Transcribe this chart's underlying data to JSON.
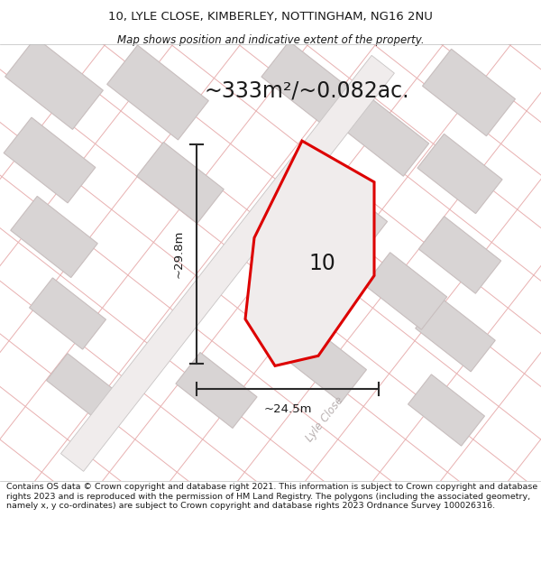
{
  "title_line1": "10, LYLE CLOSE, KIMBERLEY, NOTTINGHAM, NG16 2NU",
  "title_line2": "Map shows position and indicative extent of the property.",
  "area_text": "~333m²/~0.082ac.",
  "label_number": "10",
  "dim_vertical": "~29.8m",
  "dim_horizontal": "~24.5m",
  "street_label": "Lyle Close",
  "footer_text": "Contains OS data © Crown copyright and database right 2021. This information is subject to Crown copyright and database rights 2023 and is reproduced with the permission of HM Land Registry. The polygons (including the associated geometry, namely x, y co-ordinates) are subject to Crown copyright and database rights 2023 Ordnance Survey 100026316.",
  "map_bg": "#ece9e9",
  "plot_fill": "#f0ecec",
  "plot_outline": "#dd0000",
  "building_fill": "#d8d4d4",
  "building_edge": "#c8bebe",
  "road_outline_color": "#d0c8c8",
  "road_fill": "#eae6e6",
  "pink_line_color": "#e8b0b0",
  "gray_line_color": "#c8c4c4",
  "dim_line_color": "#2a2a2a",
  "text_color": "#1a1a1a",
  "street_text_color": "#b8b0b0",
  "footer_bg": "#ffffff",
  "title_bg": "#ffffff"
}
